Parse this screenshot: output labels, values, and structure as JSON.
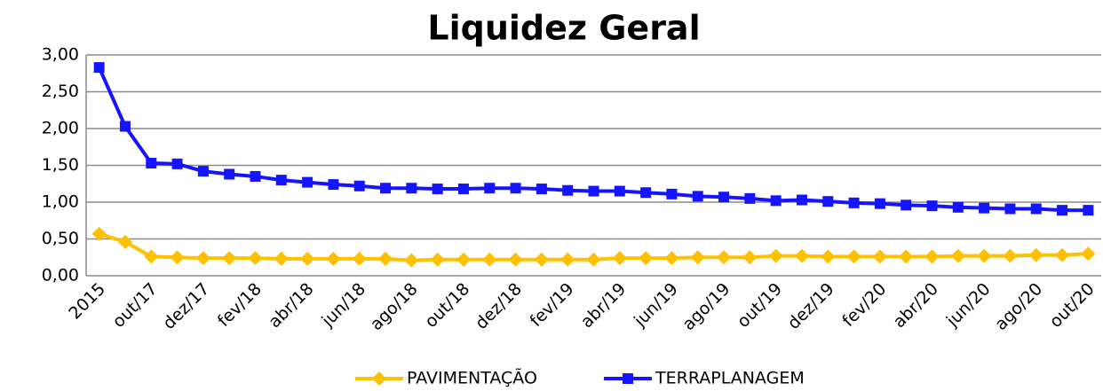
{
  "chart_data": {
    "type": "line",
    "title": "Liquidez Geral",
    "categories": [
      "2015",
      null,
      "out/17",
      null,
      "dez/17",
      null,
      "fev/18",
      null,
      "abr/18",
      null,
      "jun/18",
      null,
      "ago/18",
      null,
      "out/18",
      null,
      "dez/18",
      null,
      "fev/19",
      null,
      "abr/19",
      null,
      "jun/19",
      null,
      "ago/19",
      null,
      "out/19",
      null,
      "dez/19",
      null,
      "fev/20",
      null,
      "abr/20",
      null,
      "jun/20",
      null,
      "ago/20",
      null,
      "out/20"
    ],
    "series": [
      {
        "name": "PAVIMENTAÇÃO",
        "color": "#ffc000",
        "marker": "diamond",
        "values": [
          0.57,
          0.46,
          0.26,
          0.25,
          0.24,
          0.24,
          0.24,
          0.23,
          0.23,
          0.23,
          0.23,
          0.23,
          0.21,
          0.22,
          0.22,
          0.22,
          0.22,
          0.22,
          0.22,
          0.22,
          0.24,
          0.24,
          0.24,
          0.25,
          0.25,
          0.25,
          0.27,
          0.27,
          0.26,
          0.26,
          0.26,
          0.26,
          0.26,
          0.27,
          0.27,
          0.27,
          0.28,
          0.28,
          0.3
        ]
      },
      {
        "name": "TERRAPLANAGEM",
        "color": "#1414ff",
        "marker": "square",
        "values": [
          2.83,
          2.03,
          1.53,
          1.52,
          1.42,
          1.38,
          1.35,
          1.3,
          1.27,
          1.24,
          1.22,
          1.19,
          1.19,
          1.18,
          1.18,
          1.19,
          1.19,
          1.18,
          1.16,
          1.15,
          1.15,
          1.13,
          1.11,
          1.08,
          1.07,
          1.05,
          1.02,
          1.03,
          1.01,
          0.99,
          0.98,
          0.96,
          0.95,
          0.93,
          0.92,
          0.91,
          0.91,
          0.89,
          0.89
        ]
      }
    ],
    "ylim": [
      0,
      3
    ],
    "yticks": [
      {
        "value": 0,
        "label": "0,00"
      },
      {
        "value": 0.5,
        "label": "0,50"
      },
      {
        "value": 1,
        "label": "1,00"
      },
      {
        "value": 1.5,
        "label": "1,50"
      },
      {
        "value": 2,
        "label": "2,00"
      },
      {
        "value": 2.5,
        "label": "2,50"
      },
      {
        "value": 3,
        "label": "3,00"
      }
    ],
    "grid": true,
    "legend": "bottom"
  }
}
